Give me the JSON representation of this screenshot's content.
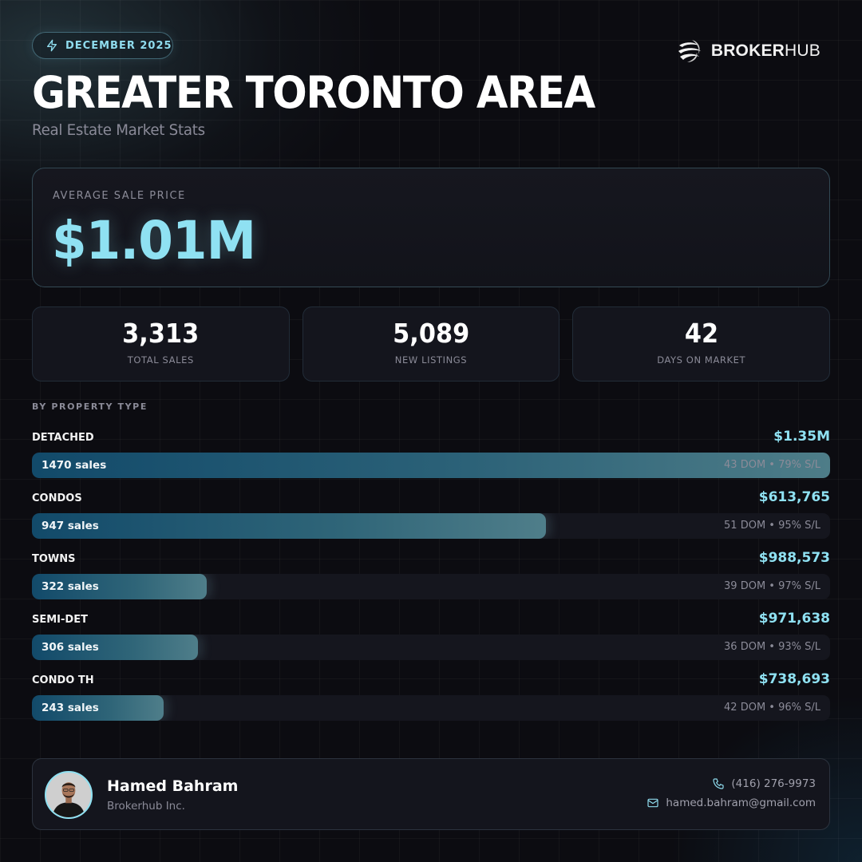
{
  "header": {
    "date_badge": "DECEMBER 2025",
    "date_icon": "lightning-icon",
    "brand": {
      "bold": "BROKER",
      "light": "HUB",
      "logo_icon": "brokerhub-swirl-logo"
    },
    "title": "GREATER TORONTO AREA",
    "subtitle": "Real Estate Market Stats"
  },
  "hero": {
    "label": "AVERAGE SALE PRICE",
    "value": "$1.01M"
  },
  "stats": [
    {
      "value": "3,313",
      "label": "TOTAL SALES"
    },
    {
      "value": "5,089",
      "label": "NEW LISTINGS"
    },
    {
      "value": "42",
      "label": "DAYS ON MARKET"
    }
  ],
  "property_section": {
    "label": "BY PROPERTY TYPE",
    "items": [
      {
        "name": "DETACHED",
        "price": "$1.35M",
        "sales": "1470 sales",
        "meta": "43 DOM • 79% S/L",
        "pct": 100
      },
      {
        "name": "CONDOS",
        "price": "$613,765",
        "sales": "947 sales",
        "meta": "51 DOM • 95% S/L",
        "pct": 64.4
      },
      {
        "name": "TOWNS",
        "price": "$988,573",
        "sales": "322 sales",
        "meta": "39 DOM • 97% S/L",
        "pct": 21.9
      },
      {
        "name": "SEMI-DET",
        "price": "$971,638",
        "sales": "306 sales",
        "meta": "36 DOM • 93% S/L",
        "pct": 20.8
      },
      {
        "name": "CONDO TH",
        "price": "$738,693",
        "sales": "243 sales",
        "meta": "42 DOM • 96% S/L",
        "pct": 16.5
      }
    ]
  },
  "agent": {
    "name": "Hamed Bahram",
    "company": "Brokerhub Inc.",
    "phone": "(416) 276-9973",
    "email": "hamed.bahram@gmail.com"
  },
  "colors": {
    "accent": "#8fe1f2",
    "background": "#0c0c11",
    "card": "#14151d",
    "bar_start": "#124a6a",
    "bar_end": "#4f7e8a",
    "muted_text": "#8b8b98"
  }
}
